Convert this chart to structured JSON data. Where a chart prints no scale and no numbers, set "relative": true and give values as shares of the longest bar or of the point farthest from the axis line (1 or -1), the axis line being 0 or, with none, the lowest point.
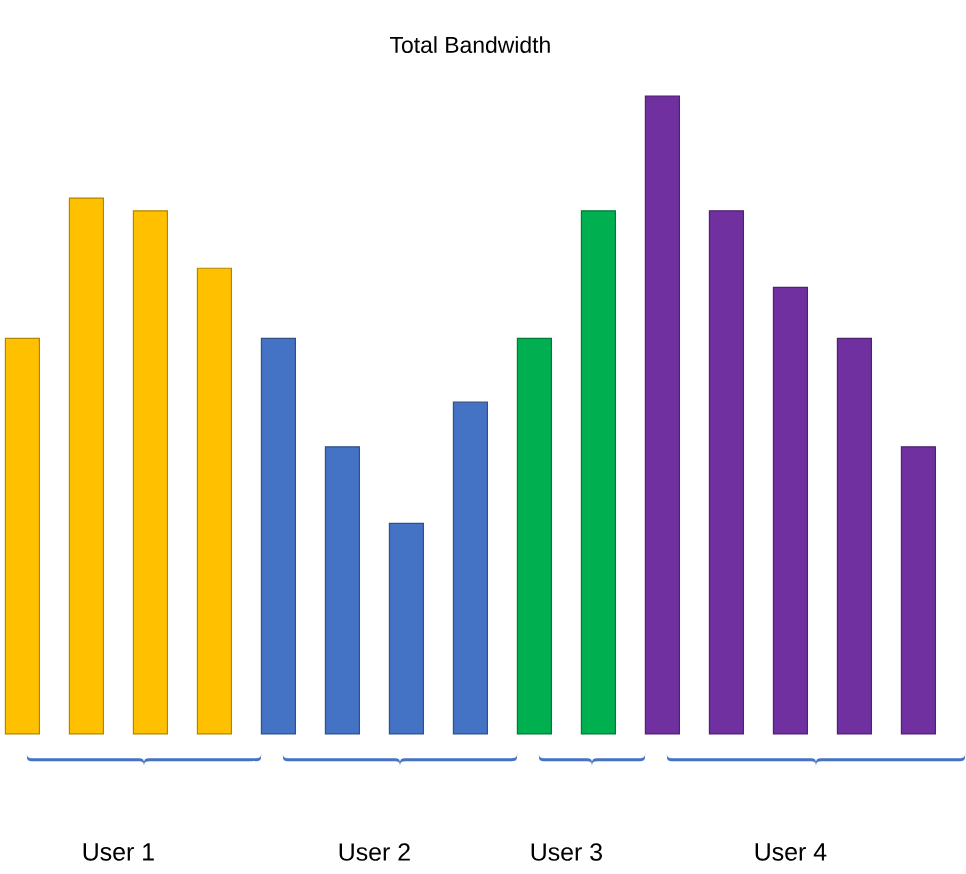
{
  "chart_data": {
    "type": "bar",
    "title": "Total Bandwidth",
    "relative": true,
    "categories": [
      null,
      null,
      null,
      null,
      null,
      null,
      null,
      null,
      null,
      null,
      null,
      null,
      null,
      null,
      null
    ],
    "values": [
      0.62,
      0.84,
      0.82,
      0.73,
      0.62,
      0.45,
      0.33,
      0.52,
      0.62,
      0.82,
      1.0,
      0.82,
      0.7,
      0.62,
      0.45
    ],
    "colors": [
      "#ffc000",
      "#ffc000",
      "#ffc000",
      "#ffc000",
      "#4472c4",
      "#4472c4",
      "#4472c4",
      "#4472c4",
      "#00b050",
      "#00b050",
      "#7030a0",
      "#7030a0",
      "#7030a0",
      "#7030a0",
      "#7030a0"
    ],
    "annotations": [
      "User 1",
      "User 2",
      "User 3",
      "User 4"
    ]
  }
}
